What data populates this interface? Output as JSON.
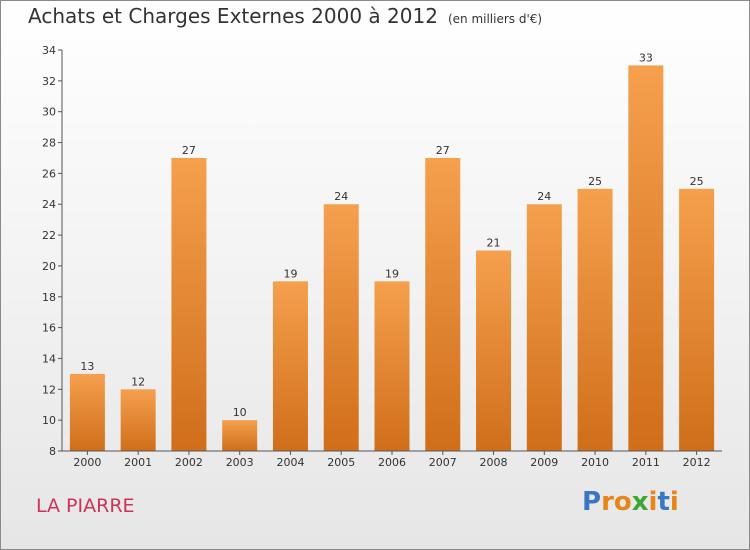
{
  "title": "Achats et Charges Externes 2000 à 2012",
  "unit": "(en milliers d'€)",
  "commune": "LA PIARRE",
  "logo": {
    "text": "Proxiti",
    "letters": [
      "P",
      "r",
      "o",
      "x",
      "i",
      "t",
      "i"
    ],
    "colors": [
      "#3a77c2",
      "#e8851a",
      "#e8851a",
      "#3fa535",
      "#e8851a",
      "#3a77c2",
      "#e8851a"
    ]
  },
  "colors": {
    "bar_top": "#f5a04d",
    "bar_bottom": "#d06e1a",
    "commune": "#cc3355",
    "title": "#333333"
  },
  "chart_data": {
    "type": "bar",
    "title": "Achats et Charges Externes 2000 à 2012",
    "subtitle": "(en milliers d'€)",
    "xlabel": "",
    "ylabel": "",
    "categories": [
      "2000",
      "2001",
      "2002",
      "2003",
      "2004",
      "2005",
      "2006",
      "2007",
      "2008",
      "2009",
      "2010",
      "2011",
      "2012"
    ],
    "values": [
      13,
      12,
      27,
      10,
      19,
      24,
      19,
      27,
      21,
      24,
      25,
      33,
      25
    ],
    "ylim": [
      8,
      34
    ],
    "yticks": [
      8,
      10,
      12,
      14,
      16,
      18,
      20,
      22,
      24,
      26,
      28,
      30,
      32,
      34
    ],
    "grid": false,
    "legend": "none"
  }
}
